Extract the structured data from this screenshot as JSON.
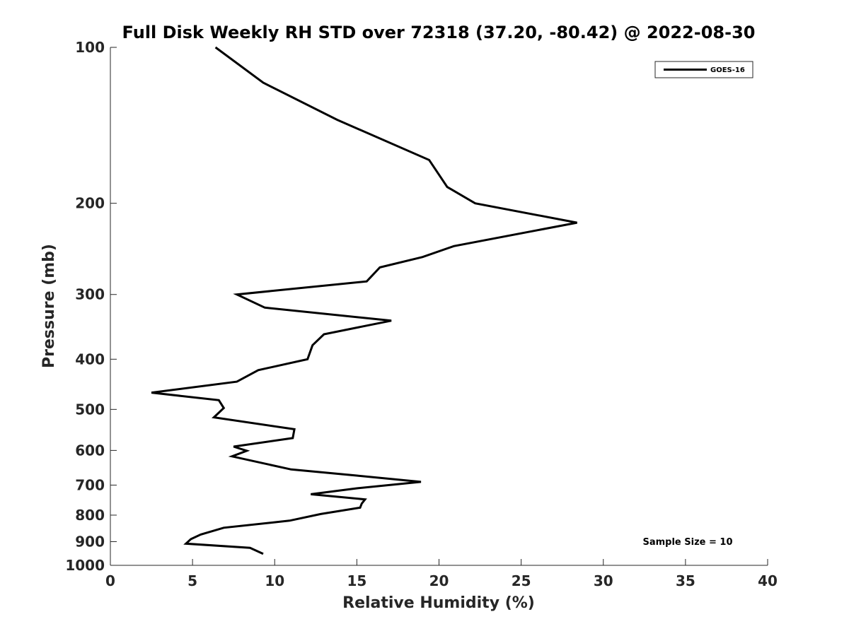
{
  "chart_data": {
    "type": "line",
    "title": "Full Disk Weekly RH STD over 72318 (37.20, -80.42) @ 2022-08-30",
    "xlabel": "Relative Humidity (%)",
    "ylabel": "Pressure (mb)",
    "xlim": [
      0,
      40
    ],
    "ylim": [
      100,
      1000
    ],
    "y_scale": "log",
    "y_reversed": true,
    "x_ticks": [
      0,
      5,
      10,
      15,
      20,
      25,
      30,
      35,
      40
    ],
    "y_ticks": [
      100,
      200,
      300,
      400,
      500,
      600,
      700,
      800,
      900,
      1000
    ],
    "grid": false,
    "legend_position": "top-right",
    "annotation": "Sample Size = 10",
    "series": [
      {
        "name": "GOES-16",
        "color": "#000000",
        "points": [
          [
            6.4,
            100
          ],
          [
            9.3,
            117
          ],
          [
            13.8,
            138
          ],
          [
            19.4,
            165
          ],
          [
            20.5,
            186
          ],
          [
            22.2,
            200
          ],
          [
            28.4,
            218
          ],
          [
            20.9,
            242
          ],
          [
            19.0,
            254
          ],
          [
            16.4,
            266
          ],
          [
            15.6,
            283
          ],
          [
            7.7,
            300
          ],
          [
            9.4,
            318
          ],
          [
            17.1,
            337
          ],
          [
            13.0,
            358
          ],
          [
            12.3,
            376
          ],
          [
            12.0,
            400
          ],
          [
            9.0,
            420
          ],
          [
            7.7,
            442
          ],
          [
            2.5,
            464
          ],
          [
            6.6,
            480
          ],
          [
            6.9,
            497
          ],
          [
            6.3,
            518
          ],
          [
            11.2,
            546
          ],
          [
            11.1,
            568
          ],
          [
            7.5,
            590
          ],
          [
            8.3,
            601
          ],
          [
            7.4,
            616
          ],
          [
            11.0,
            653
          ],
          [
            15.0,
            671
          ],
          [
            18.9,
            690
          ],
          [
            15.0,
            710
          ],
          [
            12.2,
            729
          ],
          [
            15.5,
            746
          ],
          [
            15.3,
            760
          ],
          [
            15.2,
            774
          ],
          [
            12.8,
            796
          ],
          [
            10.9,
            820
          ],
          [
            6.9,
            846
          ],
          [
            5.5,
            872
          ],
          [
            4.9,
            890
          ],
          [
            4.6,
            908
          ],
          [
            8.5,
            925
          ],
          [
            9.3,
            950
          ]
        ]
      }
    ]
  }
}
